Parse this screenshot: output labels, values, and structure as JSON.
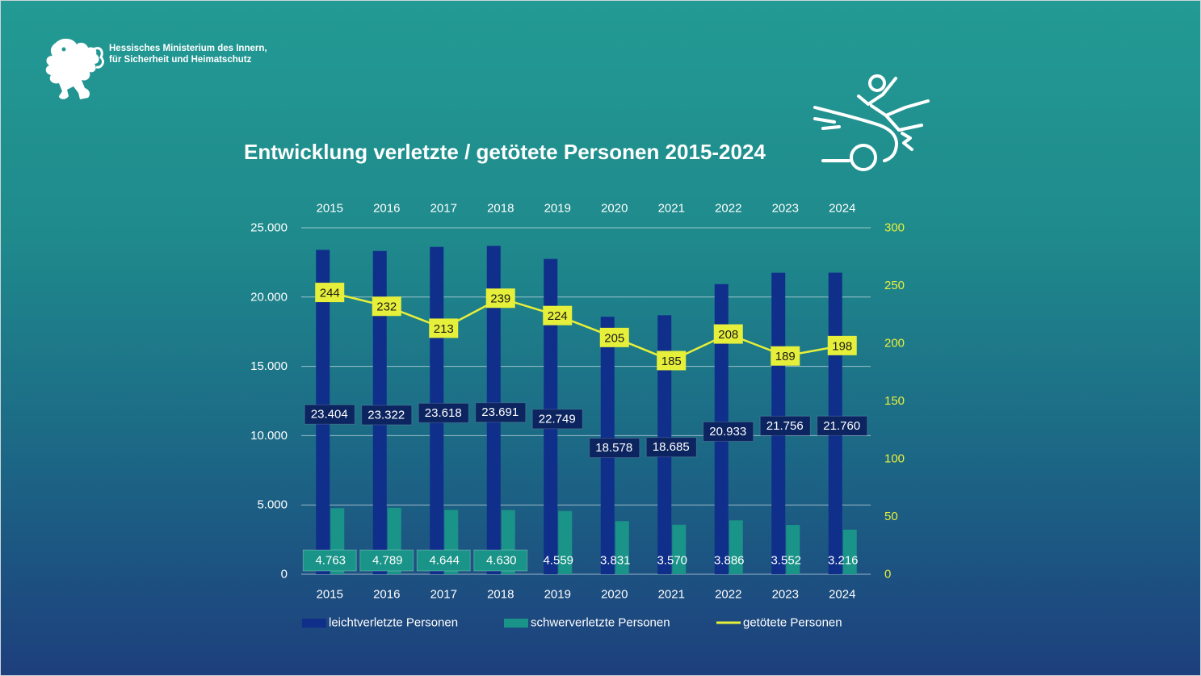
{
  "header": {
    "ministry_line1": "Hessisches Ministerium des Innern,",
    "ministry_line2": "für Sicherheit und Heimatschutz",
    "logo_icon": "hessen-lion-icon",
    "decor_icon": "car-accident-icon"
  },
  "colors": {
    "background_top": "#239a94",
    "background_bottom": "#1d3f7d",
    "leicht": "#0f2f8a",
    "schwer": "#1a9488",
    "getoetet": "#e6ef3a",
    "label_dark": "#0c2460"
  },
  "chart_data": {
    "type": "bar",
    "title": "Entwicklung verletzte / getötete Personen 2015-2024",
    "categories": [
      "2015",
      "2016",
      "2017",
      "2018",
      "2019",
      "2020",
      "2021",
      "2022",
      "2023",
      "2024"
    ],
    "series": [
      {
        "name": "leichtverletzte Personen",
        "type": "bar",
        "axis": "left",
        "values": [
          23404,
          23322,
          23618,
          23691,
          22749,
          18578,
          18685,
          20933,
          21756,
          21760
        ],
        "labels": [
          "23.404",
          "23.322",
          "23.618",
          "23.691",
          "22.749",
          "18.578",
          "18.685",
          "20.933",
          "21.756",
          "21.760"
        ]
      },
      {
        "name": "schwerverletzte Personen",
        "type": "bar",
        "axis": "left",
        "values": [
          4763,
          4789,
          4644,
          4630,
          4559,
          3831,
          3570,
          3886,
          3552,
          3216
        ],
        "labels": [
          "4.763",
          "4.789",
          "4.644",
          "4.630",
          "4.559",
          "3.831",
          "3.570",
          "3.886",
          "3.552",
          "3.216"
        ]
      },
      {
        "name": "getötete Personen",
        "type": "line",
        "axis": "right",
        "values": [
          244,
          232,
          213,
          239,
          224,
          205,
          185,
          208,
          189,
          198
        ],
        "labels": [
          "244",
          "232",
          "213",
          "239",
          "224",
          "205",
          "185",
          "208",
          "189",
          "198"
        ]
      }
    ],
    "y_left": {
      "lim": [
        0,
        25000
      ],
      "ticks": [
        0,
        5000,
        10000,
        15000,
        20000,
        25000
      ],
      "tick_labels": [
        "0",
        "5.000",
        "10.000",
        "15.000",
        "20.000",
        "25.000"
      ]
    },
    "y_right": {
      "lim": [
        0,
        300
      ],
      "ticks": [
        0,
        50,
        100,
        150,
        200,
        250,
        300
      ],
      "tick_labels": [
        "0",
        "50",
        "100",
        "150",
        "200",
        "250",
        "300"
      ]
    },
    "grid": true,
    "x_labels_top": true,
    "x_labels_bottom": true,
    "legend_position": "bottom"
  }
}
